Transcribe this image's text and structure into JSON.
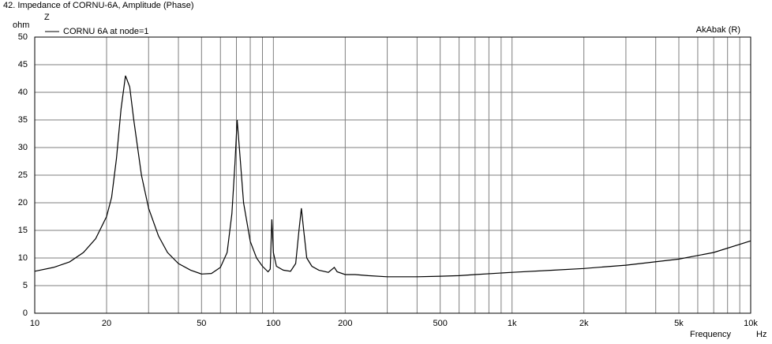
{
  "chart_data": {
    "type": "line",
    "title": "42. Impedance of CORNU-6A, Amplitude (Phase)",
    "y_unit": "ohm",
    "y_label": "Z",
    "watermark": "AkAbak (R)",
    "x_label": "Frequency",
    "x_unit": "Hz",
    "x_scale": "log",
    "grid": true,
    "legend": "top-left",
    "xlim": [
      10,
      10000
    ],
    "xticks": [
      10,
      20,
      50,
      100,
      200,
      500,
      {
        "value": 1000,
        "label": "1k"
      },
      {
        "value": 2000,
        "label": "2k"
      },
      {
        "value": 5000,
        "label": "5k"
      },
      {
        "value": 10000,
        "label": "10k"
      }
    ],
    "xgrid": [
      30,
      40,
      60,
      70,
      80,
      90,
      300,
      400,
      600,
      700,
      800,
      900,
      3000,
      4000,
      6000,
      7000,
      8000,
      9000
    ],
    "ylim": [
      0,
      50
    ],
    "yticks": [
      0,
      5,
      10,
      15,
      20,
      25,
      30,
      35,
      40,
      45,
      50
    ],
    "x": [
      10,
      12,
      14,
      16,
      18,
      20,
      21,
      22,
      23,
      24,
      25,
      26,
      28,
      30,
      33,
      36,
      40,
      45,
      50,
      55,
      60,
      64,
      67,
      69,
      70.5,
      72,
      75,
      80,
      85,
      90,
      95,
      97,
      98.5,
      100,
      103,
      110,
      118,
      124,
      128,
      131,
      134,
      138,
      145,
      155,
      170,
      180,
      185,
      200,
      220,
      250,
      300,
      400,
      500,
      600,
      700,
      1000,
      1500,
      2000,
      3000,
      5000,
      7000,
      10000
    ],
    "series": [
      {
        "name": "CORNU 6A at node=1",
        "color": "#000000",
        "values": [
          7.6,
          8.3,
          9.3,
          11,
          13.5,
          17.5,
          21,
          28,
          37,
          43,
          41,
          35,
          25,
          19,
          14,
          11,
          9,
          7.8,
          7.1,
          7.2,
          8.3,
          11,
          18,
          27,
          35,
          30,
          20,
          13,
          10,
          8.5,
          7.5,
          8,
          17,
          11,
          8.5,
          7.8,
          7.6,
          9,
          15,
          19,
          15,
          10,
          8.5,
          7.8,
          7.4,
          8.3,
          7.5,
          7.0,
          7.0,
          6.8,
          6.6,
          6.6,
          6.7,
          6.8,
          7.0,
          7.4,
          7.8,
          8.1,
          8.7,
          9.8,
          11,
          13.1
        ]
      }
    ]
  }
}
